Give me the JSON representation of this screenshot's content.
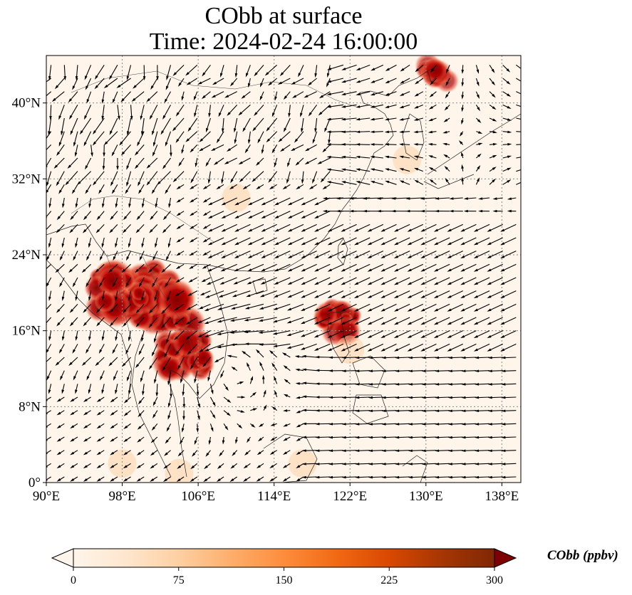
{
  "title": {
    "line1": "CObb at surface",
    "line2": "Time: 2024-02-24 16:00:00"
  },
  "map": {
    "lon_range": [
      90,
      140
    ],
    "lat_range": [
      0,
      45
    ],
    "lon_ticks": [
      {
        "value": 90,
        "label": "90°E"
      },
      {
        "value": 98,
        "label": "98°E"
      },
      {
        "value": 106,
        "label": "106°E"
      },
      {
        "value": 114,
        "label": "114°E"
      },
      {
        "value": 122,
        "label": "122°E"
      },
      {
        "value": 130,
        "label": "130°E"
      },
      {
        "value": 138,
        "label": "138°E"
      }
    ],
    "lat_ticks": [
      {
        "value": 0,
        "label": "0°"
      },
      {
        "value": 8,
        "label": "8°N"
      },
      {
        "value": 16,
        "label": "16°N"
      },
      {
        "value": 24,
        "label": "24°N"
      },
      {
        "value": 32,
        "label": "32°N"
      },
      {
        "value": 40,
        "label": "40°N"
      }
    ],
    "gridlines": "dotted",
    "background_color": "#fff5eb",
    "high_concentration_regions": [
      {
        "lon": 100.5,
        "lat": 20.5,
        "level": 300
      },
      {
        "lon": 102.5,
        "lat": 18.5,
        "level": 300
      },
      {
        "lon": 97.5,
        "lat": 20.0,
        "level": 280
      },
      {
        "lon": 104.5,
        "lat": 13.5,
        "level": 260
      },
      {
        "lon": 121.0,
        "lat": 17.2,
        "level": 200
      },
      {
        "lon": 131.0,
        "lat": 43.0,
        "level": 140
      }
    ]
  },
  "colorbar": {
    "label": "CObb (ppbv)",
    "min": 0,
    "max": 300,
    "ticks": [
      "0",
      "75",
      "150",
      "225",
      "300"
    ],
    "colors": [
      "#fff5eb",
      "#fee6ce",
      "#fdd0a2",
      "#fdae6b",
      "#fd8d3c",
      "#f16913",
      "#d94801",
      "#a63603",
      "#7f2704"
    ],
    "extend": "both"
  }
}
